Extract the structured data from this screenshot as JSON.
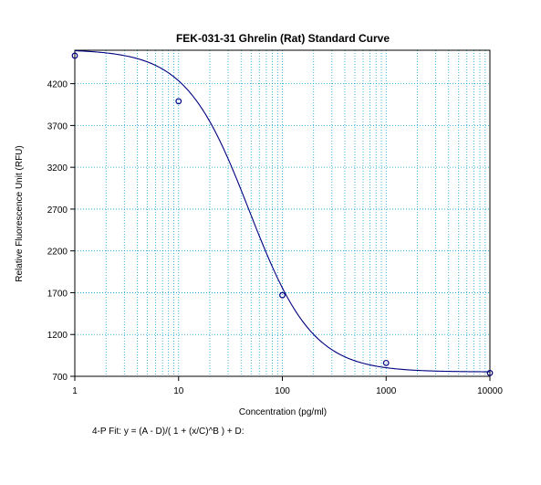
{
  "chart_data": {
    "type": "scatter",
    "title": "FEK-031-31 Ghrelin (Rat) Standard Curve",
    "xlabel": "Concentration (pg/ml)",
    "ylabel": "Relative Fluorescence Unit (RFU)",
    "x_scale": "log",
    "xlim": [
      1,
      10000
    ],
    "ylim": [
      700,
      4600
    ],
    "x_ticks": [
      1,
      10,
      100,
      1000,
      10000
    ],
    "x_tick_labels": [
      "1",
      "10",
      "100",
      "1000",
      "10000"
    ],
    "y_ticks": [
      700,
      1200,
      1700,
      2200,
      2700,
      3200,
      3700,
      4200
    ],
    "y_tick_labels": [
      "700",
      "1200",
      "1700",
      "2200",
      "2700",
      "3200",
      "3700",
      "4200"
    ],
    "grid": true,
    "series": [
      {
        "points": [
          {
            "x": 1,
            "y": 4535
          },
          {
            "x": 10,
            "y": 3990
          },
          {
            "x": 100,
            "y": 1670
          },
          {
            "x": 1000,
            "y": 860
          },
          {
            "x": 10000,
            "y": 740
          }
        ]
      }
    ],
    "fit": {
      "model": "4-P",
      "A": 4610,
      "B": 1.42,
      "C": 48,
      "D": 752
    },
    "colors": {
      "grid": "#0aa0d2",
      "curve": "#000080",
      "markers": "#000080",
      "axis": "#000000"
    }
  },
  "footer": {
    "fit_text": "4-P Fit: y = (A - D)/( 1 + (x/C)^B ) + D:"
  }
}
